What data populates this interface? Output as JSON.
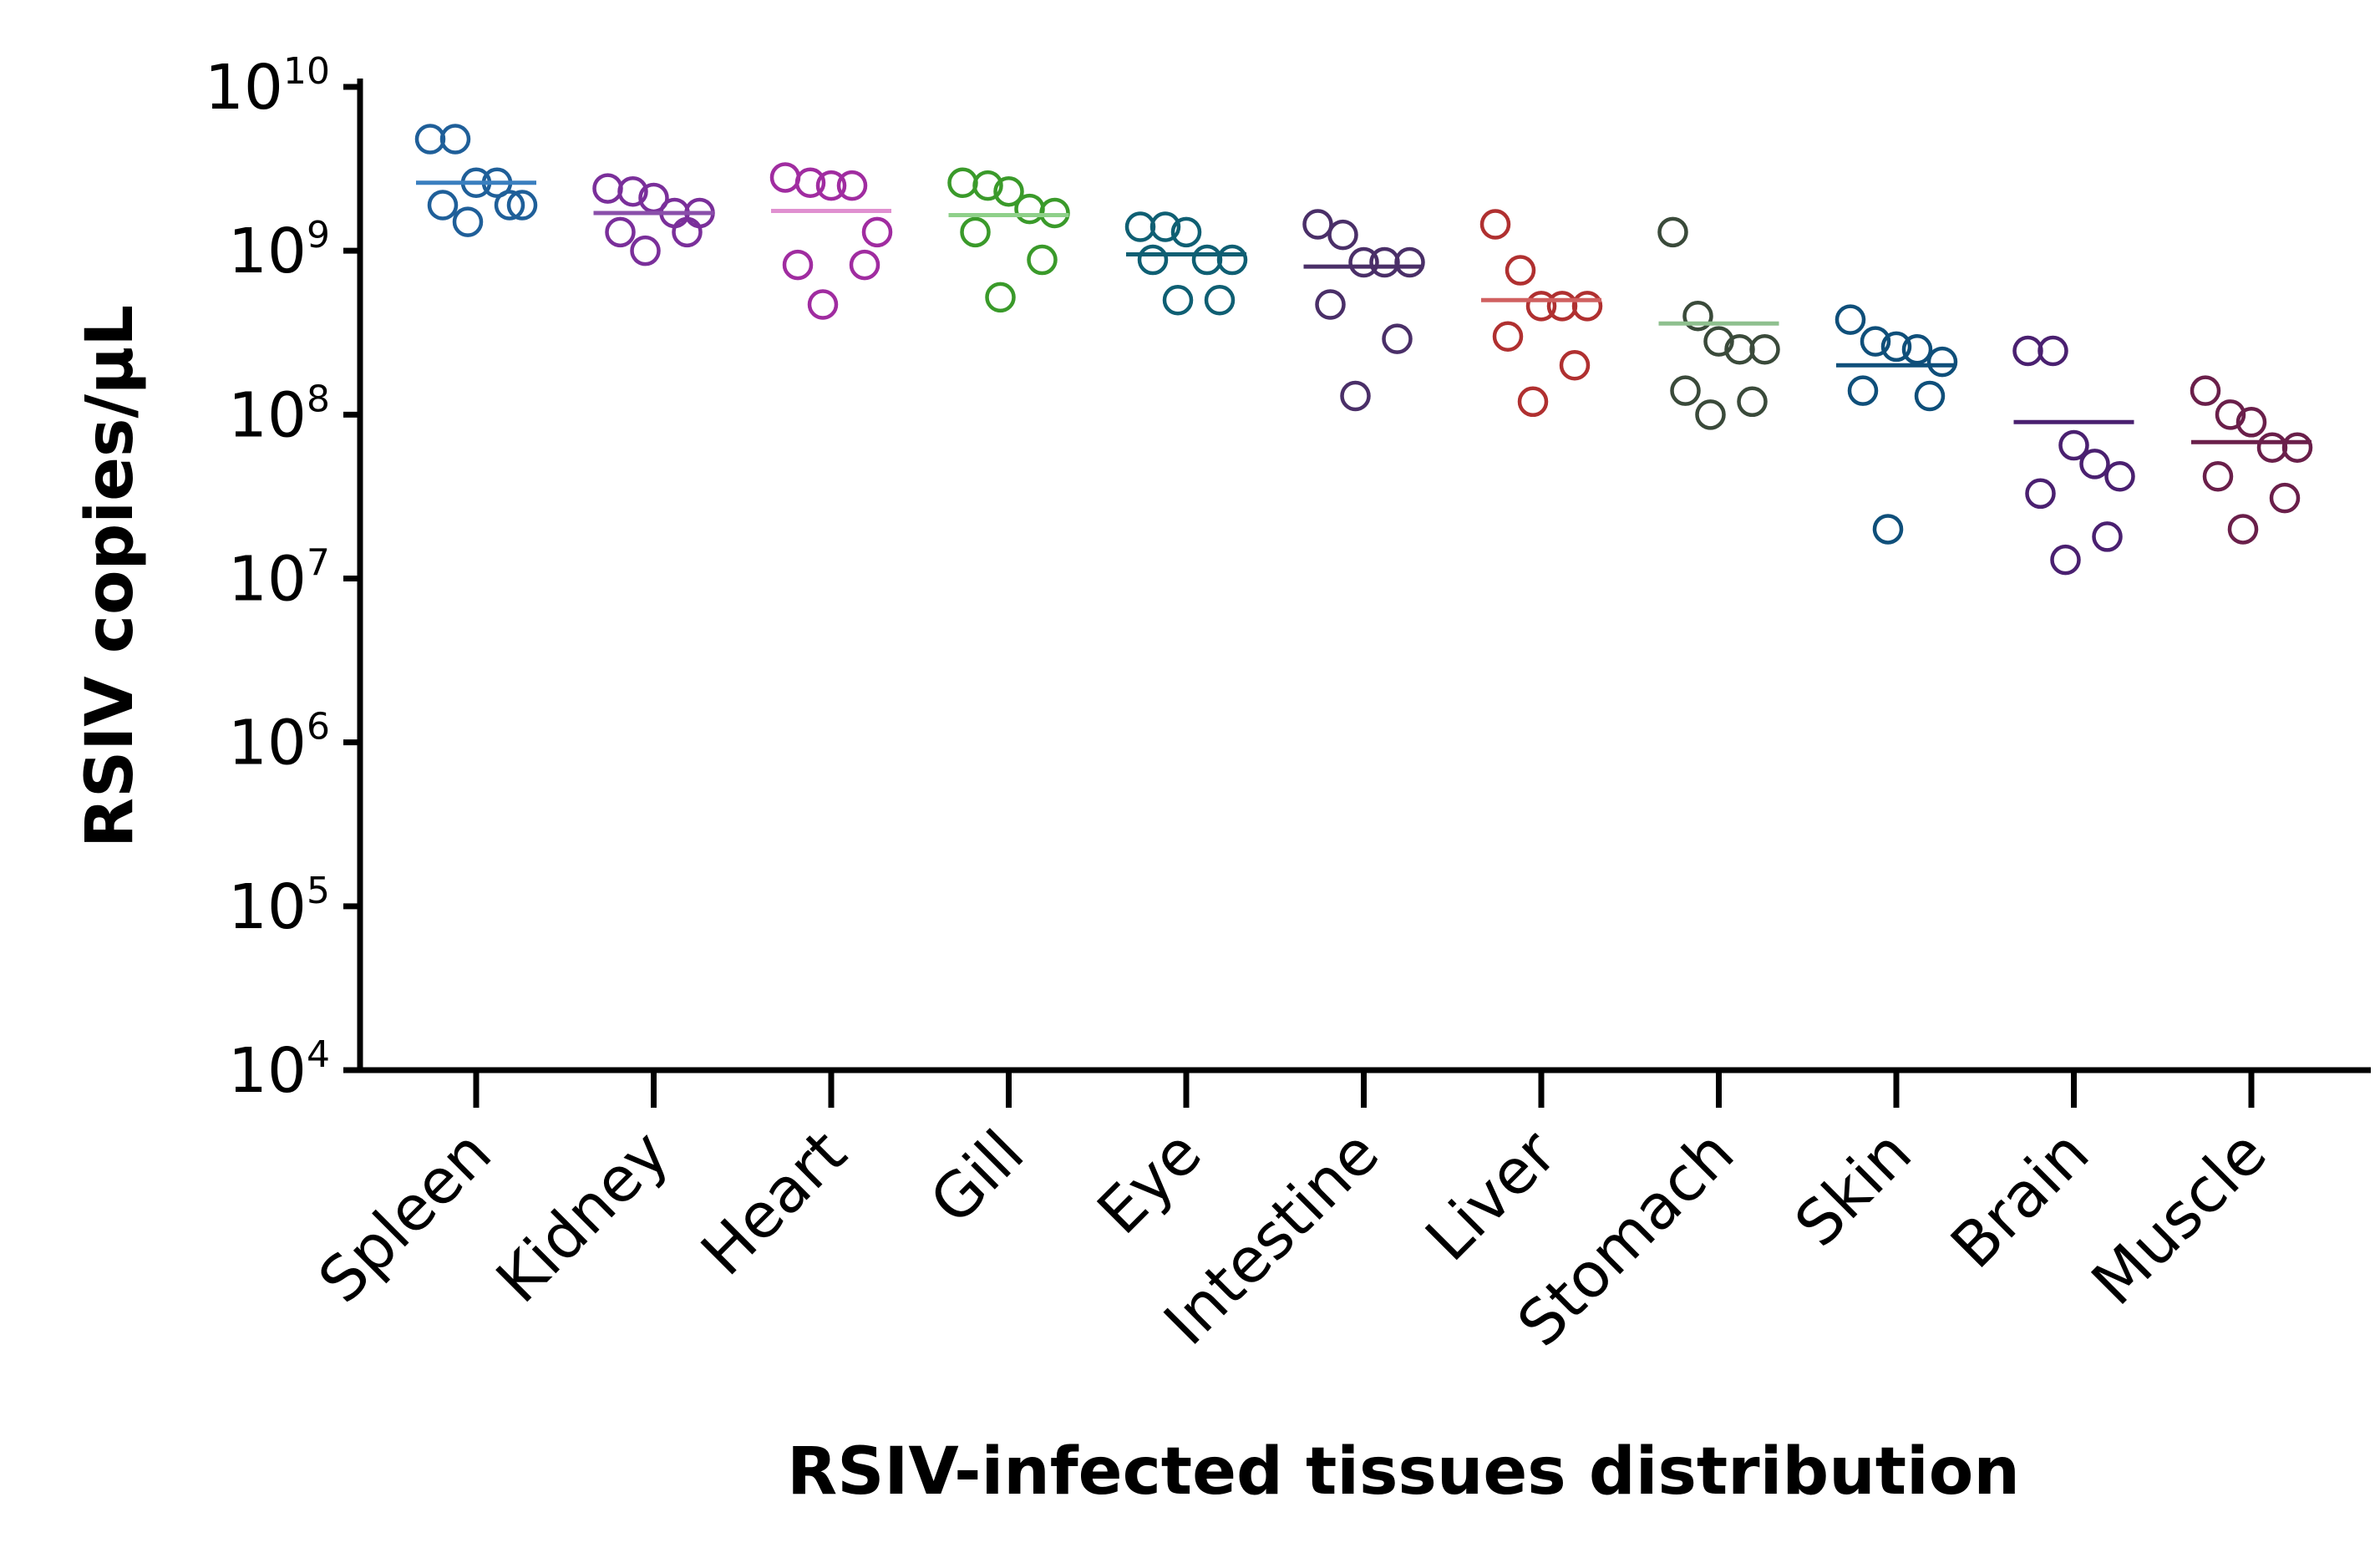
{
  "chart_data": {
    "type": "scatter",
    "subtype": "dot-plot-with-mean",
    "title": "",
    "ylabel": "RSIV copies/μL",
    "xlabel": "RSIV-infected tissues distribution",
    "yscale": "log10",
    "ylim": [
      10000,
      10000000000
    ],
    "yticks": [
      {
        "base": "10",
        "exp": "4"
      },
      {
        "base": "10",
        "exp": "5"
      },
      {
        "base": "10",
        "exp": "6"
      },
      {
        "base": "10",
        "exp": "7"
      },
      {
        "base": "10",
        "exp": "8"
      },
      {
        "base": "10",
        "exp": "9"
      },
      {
        "base": "10",
        "exp": "10"
      }
    ],
    "categories": [
      "Spleen",
      "Kidney",
      "Heart",
      "Gill",
      "Eye",
      "Intestine",
      "Liver",
      "Stomach",
      "Skin",
      "Brain",
      "Muscle"
    ],
    "series": [
      {
        "name": "Spleen",
        "color": "#1f5f99",
        "mean_color": "#3a7fbf",
        "mean": 2600000000.0,
        "points": [
          4800000000.0,
          4800000000.0,
          2600000000.0,
          2600000000.0,
          1900000000.0,
          1900000000.0,
          1900000000.0,
          1500000000.0
        ]
      },
      {
        "name": "Kidney",
        "color": "#7a2f9a",
        "mean_color": "#8a4faa",
        "mean": 1700000000.0,
        "points": [
          2400000000.0,
          2300000000.0,
          2100000000.0,
          1700000000.0,
          1700000000.0,
          1300000000.0,
          1300000000.0,
          1000000000.0
        ]
      },
      {
        "name": "Heart",
        "color": "#a02ca0",
        "mean_color": "#e090d0",
        "mean": 1750000000.0,
        "points": [
          2800000000.0,
          2600000000.0,
          2500000000.0,
          2500000000.0,
          1300000000.0,
          820000000.0,
          820000000.0,
          470000000.0
        ]
      },
      {
        "name": "Gill",
        "color": "#3a9a2a",
        "mean_color": "#8fd08a",
        "mean": 1650000000.0,
        "points": [
          2600000000.0,
          2500000000.0,
          2300000000.0,
          1800000000.0,
          1700000000.0,
          1300000000.0,
          880000000.0,
          520000000.0
        ]
      },
      {
        "name": "Eye",
        "color": "#0f5f73",
        "mean_color": "#0f5f73",
        "mean": 950000000.0,
        "points": [
          1400000000.0,
          1400000000.0,
          1300000000.0,
          880000000.0,
          880000000.0,
          880000000.0,
          500000000.0,
          500000000.0
        ]
      },
      {
        "name": "Intestine",
        "color": "#4a2f68",
        "mean_color": "#4a2f68",
        "mean": 800000000.0,
        "points": [
          1450000000.0,
          1250000000.0,
          850000000.0,
          850000000.0,
          850000000.0,
          470000000.0,
          290000000.0,
          130000000.0
        ]
      },
      {
        "name": "Liver",
        "color": "#b03030",
        "mean_color": "#d06060",
        "mean": 500000000.0,
        "points": [
          1450000000.0,
          760000000.0,
          460000000.0,
          460000000.0,
          460000000.0,
          300000000.0,
          200000000.0,
          120000000.0
        ]
      },
      {
        "name": "Stomach",
        "color": "#3a4a3a",
        "mean_color": "#8fc08f",
        "mean": 360000000.0,
        "points": [
          1300000000.0,
          400000000.0,
          280000000.0,
          250000000.0,
          250000000.0,
          140000000.0,
          120000000.0,
          100000000.0
        ]
      },
      {
        "name": "Skin",
        "color": "#0f4f7a",
        "mean_color": "#0f4f7a",
        "mean": 200000000.0,
        "points": [
          380000000.0,
          280000000.0,
          260000000.0,
          250000000.0,
          210000000.0,
          140000000.0,
          130000000.0,
          20000000.0
        ]
      },
      {
        "name": "Brain",
        "color": "#4a2070",
        "mean_color": "#4a2070",
        "mean": 90000000.0,
        "points": [
          245000000.0,
          245000000.0,
          65000000.0,
          50000000.0,
          42000000.0,
          33000000.0,
          18000000.0,
          13000000.0
        ]
      },
      {
        "name": "Muscle",
        "color": "#6a1f4a",
        "mean_color": "#6a1f4a",
        "mean": 68000000.0,
        "points": [
          140000000.0,
          100000000.0,
          90000000.0,
          63000000.0,
          63000000.0,
          42000000.0,
          31000000.0,
          20000000.0
        ]
      }
    ]
  }
}
